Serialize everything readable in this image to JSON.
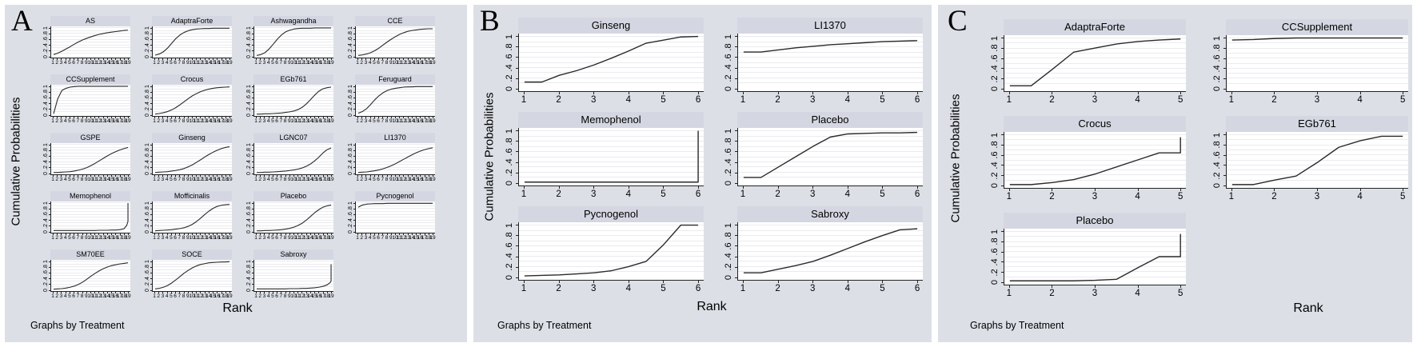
{
  "figure": {
    "background": "#ffffff",
    "panel_background": "#dce0e6",
    "title_bar_color": "#d4d7e1",
    "gridline_color": "#ebebef",
    "axis_color": "#222222",
    "curve_color": "#2a2a2a"
  },
  "chart_data": [
    {
      "panel_letter": "A",
      "type": "line",
      "ylabel": "Cumulative Probabilities",
      "xlabel": "Rank",
      "footer": "Graphs by Treatment",
      "grid": "horizontal gridlines on",
      "columns": 4,
      "x_range": [
        1,
        19
      ],
      "x_ticks": [
        1,
        2,
        3,
        4,
        5,
        6,
        7,
        8,
        9,
        10,
        11,
        12,
        13,
        14,
        15,
        16,
        17,
        18,
        19
      ],
      "x_default": [
        1,
        2,
        3,
        4,
        5,
        6,
        7,
        8,
        9,
        10,
        11,
        12,
        13,
        14,
        15,
        16,
        17,
        18,
        19
      ],
      "ylim": [
        0,
        1
      ],
      "y_ticks": [
        0,
        0.2,
        0.4,
        0.6,
        0.8,
        1
      ],
      "y_tick_labels": [
        "0",
        ".2",
        ".4",
        ".6",
        ".8",
        "1"
      ],
      "subplots": [
        {
          "title": "AS",
          "y": [
            0.05,
            0.1,
            0.17,
            0.25,
            0.33,
            0.42,
            0.5,
            0.57,
            0.63,
            0.68,
            0.73,
            0.77,
            0.8,
            0.83,
            0.85,
            0.87,
            0.89,
            0.91,
            0.92
          ]
        },
        {
          "title": "AdaptraForte",
          "y": [
            0.03,
            0.07,
            0.15,
            0.28,
            0.45,
            0.62,
            0.75,
            0.84,
            0.9,
            0.94,
            0.96,
            0.97,
            0.98,
            0.98,
            0.99,
            0.99,
            0.99,
            0.99,
            0.99
          ]
        },
        {
          "title": "Ashwagandha",
          "y": [
            0.02,
            0.05,
            0.12,
            0.25,
            0.42,
            0.6,
            0.75,
            0.86,
            0.92,
            0.96,
            0.98,
            0.99,
            0.99,
            0.99,
            1,
            1,
            1,
            1,
            1
          ]
        },
        {
          "title": "CCE",
          "y": [
            0.02,
            0.04,
            0.07,
            0.12,
            0.19,
            0.28,
            0.39,
            0.5,
            0.6,
            0.69,
            0.77,
            0.83,
            0.88,
            0.91,
            0.93,
            0.95,
            0.96,
            0.97,
            0.97
          ]
        },
        {
          "title": "CCSupplement",
          "y": [
            0.02,
            0.55,
            0.85,
            0.93,
            0.97,
            0.99,
            1,
            1,
            1,
            1,
            1,
            1,
            1,
            1,
            1,
            1,
            1,
            1,
            1
          ]
        },
        {
          "title": "Crocus",
          "y": [
            0.01,
            0.03,
            0.06,
            0.1,
            0.16,
            0.24,
            0.34,
            0.45,
            0.56,
            0.66,
            0.74,
            0.81,
            0.86,
            0.9,
            0.93,
            0.95,
            0.96,
            0.97,
            0.98
          ]
        },
        {
          "title": "EGb761",
          "y": [
            0.01,
            0.01,
            0.02,
            0.02,
            0.03,
            0.04,
            0.05,
            0.07,
            0.09,
            0.12,
            0.17,
            0.25,
            0.37,
            0.52,
            0.68,
            0.82,
            0.91,
            0.95,
            0.97
          ]
        },
        {
          "title": "Feruguard",
          "y": [
            0.04,
            0.1,
            0.2,
            0.35,
            0.52,
            0.66,
            0.77,
            0.85,
            0.9,
            0.93,
            0.95,
            0.97,
            0.98,
            0.98,
            0.99,
            0.99,
            0.99,
            0.99,
            0.99
          ]
        },
        {
          "title": "GSPE",
          "y": [
            0.01,
            0.01,
            0.02,
            0.03,
            0.04,
            0.06,
            0.09,
            0.13,
            0.18,
            0.25,
            0.33,
            0.42,
            0.51,
            0.6,
            0.68,
            0.75,
            0.81,
            0.86,
            0.9
          ]
        },
        {
          "title": "Ginseng",
          "y": [
            0.01,
            0.02,
            0.03,
            0.04,
            0.06,
            0.08,
            0.11,
            0.15,
            0.21,
            0.28,
            0.37,
            0.46,
            0.56,
            0.65,
            0.73,
            0.8,
            0.86,
            0.9,
            0.93
          ]
        },
        {
          "title": "LGNC07",
          "y": [
            0.01,
            0.01,
            0.02,
            0.02,
            0.03,
            0.04,
            0.05,
            0.06,
            0.08,
            0.1,
            0.13,
            0.17,
            0.23,
            0.31,
            0.42,
            0.55,
            0.7,
            0.82,
            0.88
          ]
        },
        {
          "title": "LI1370",
          "y": [
            0.01,
            0.02,
            0.03,
            0.05,
            0.07,
            0.1,
            0.14,
            0.19,
            0.25,
            0.32,
            0.4,
            0.48,
            0.56,
            0.64,
            0.71,
            0.77,
            0.82,
            0.86,
            0.89
          ]
        },
        {
          "title": "Memophenol",
          "x": [
            1,
            2,
            3,
            4,
            5,
            6,
            7,
            8,
            9,
            10,
            11,
            12,
            13,
            14,
            15,
            16,
            17,
            18,
            18.7,
            19,
            19
          ],
          "y": [
            0.02,
            0.02,
            0.02,
            0.02,
            0.02,
            0.02,
            0.02,
            0.02,
            0.02,
            0.02,
            0.02,
            0.03,
            0.03,
            0.03,
            0.04,
            0.04,
            0.05,
            0.08,
            0.2,
            0.35,
            1
          ]
        },
        {
          "title": "Mofficinalis",
          "y": [
            0.01,
            0.02,
            0.03,
            0.04,
            0.05,
            0.07,
            0.09,
            0.12,
            0.17,
            0.24,
            0.34,
            0.46,
            0.59,
            0.71,
            0.81,
            0.88,
            0.92,
            0.94,
            0.95
          ]
        },
        {
          "title": "Placebo",
          "y": [
            0.01,
            0.01,
            0.02,
            0.02,
            0.03,
            0.04,
            0.05,
            0.07,
            0.1,
            0.14,
            0.2,
            0.28,
            0.39,
            0.52,
            0.65,
            0.76,
            0.85,
            0.9,
            0.93
          ]
        },
        {
          "title": "Pycnogenol",
          "y": [
            0.85,
            0.93,
            0.96,
            0.97,
            0.98,
            0.98,
            0.98,
            0.99,
            0.99,
            0.99,
            0.99,
            0.99,
            0.99,
            0.99,
            0.99,
            0.99,
            0.99,
            0.99,
            0.99
          ]
        },
        {
          "title": "SM70EE",
          "y": [
            0.01,
            0.02,
            0.03,
            0.05,
            0.08,
            0.12,
            0.18,
            0.26,
            0.36,
            0.47,
            0.57,
            0.66,
            0.74,
            0.8,
            0.85,
            0.88,
            0.91,
            0.93,
            0.95
          ]
        },
        {
          "title": "SOCE",
          "y": [
            0.02,
            0.04,
            0.08,
            0.14,
            0.23,
            0.34,
            0.46,
            0.58,
            0.68,
            0.77,
            0.84,
            0.89,
            0.92,
            0.95,
            0.96,
            0.97,
            0.98,
            0.98,
            0.99
          ]
        },
        {
          "title": "Sabroxy",
          "x": [
            1,
            2,
            3,
            4,
            5,
            6,
            7,
            8,
            9,
            10,
            11,
            12,
            13,
            14,
            15,
            16,
            17,
            18,
            18.8,
            19,
            19
          ],
          "y": [
            0.02,
            0.02,
            0.02,
            0.02,
            0.02,
            0.02,
            0.02,
            0.02,
            0.03,
            0.03,
            0.03,
            0.04,
            0.04,
            0.05,
            0.06,
            0.08,
            0.11,
            0.16,
            0.25,
            0.3,
            0.9
          ]
        }
      ]
    },
    {
      "panel_letter": "B",
      "type": "line",
      "ylabel": "Cumulative Probabilities",
      "xlabel": "Rank",
      "footer": "Graphs by Treatment",
      "grid": "horizontal gridlines on",
      "columns": 2,
      "x_range": [
        1,
        6
      ],
      "x_ticks": [
        1,
        2,
        3,
        4,
        5,
        6
      ],
      "x_default": [
        1,
        1.5,
        2,
        2.5,
        3,
        3.5,
        4,
        4.5,
        5,
        5.5,
        6
      ],
      "ylim": [
        0,
        1
      ],
      "y_ticks": [
        0,
        0.2,
        0.4,
        0.6,
        0.8,
        1
      ],
      "y_tick_labels": [
        "0",
        ".2",
        ".4",
        ".6",
        ".8",
        "1"
      ],
      "subplots": [
        {
          "title": "Ginseng",
          "y": [
            0.12,
            0.12,
            0.25,
            0.34,
            0.45,
            0.58,
            0.72,
            0.87,
            0.93,
            0.99,
            1
          ]
        },
        {
          "title": "LI1370",
          "y": [
            0.7,
            0.7,
            0.74,
            0.78,
            0.81,
            0.84,
            0.86,
            0.88,
            0.9,
            0.91,
            0.92
          ]
        },
        {
          "title": "Memophenol",
          "x": [
            1,
            6,
            6
          ],
          "y": [
            0.01,
            0.01,
            1
          ]
        },
        {
          "title": "Placebo",
          "y": [
            0.1,
            0.1,
            0.3,
            0.5,
            0.7,
            0.88,
            0.94,
            0.95,
            0.96,
            0.96,
            0.97
          ]
        },
        {
          "title": "Pycnogenol",
          "y": [
            0.02,
            0.03,
            0.04,
            0.06,
            0.08,
            0.12,
            0.2,
            0.3,
            0.62,
            1,
            1
          ]
        },
        {
          "title": "Sabroxy",
          "y": [
            0.08,
            0.08,
            0.15,
            0.22,
            0.3,
            0.42,
            0.55,
            0.68,
            0.8,
            0.91,
            0.93
          ]
        }
      ]
    },
    {
      "panel_letter": "C",
      "type": "line",
      "ylabel": "Cumulative Probabilities",
      "xlabel": "Rank",
      "footer": "Graphs by Treatment",
      "grid": "horizontal gridlines on",
      "columns": 2,
      "x_range": [
        1,
        5
      ],
      "x_ticks": [
        1,
        2,
        3,
        4,
        5
      ],
      "x_default": [
        1,
        1.5,
        2,
        2.5,
        3,
        3.5,
        4,
        4.5,
        5
      ],
      "ylim": [
        0,
        1
      ],
      "y_ticks": [
        0,
        0.2,
        0.4,
        0.6,
        0.8,
        1
      ],
      "y_tick_labels": [
        "0",
        ".2",
        ".4",
        ".6",
        ".8",
        "1"
      ],
      "subplots": [
        {
          "title": "AdaptraForte",
          "y": [
            0.05,
            0.05,
            0.38,
            0.72,
            0.8,
            0.88,
            0.93,
            0.96,
            0.98
          ]
        },
        {
          "title": "CCSupplement",
          "y": [
            0.96,
            0.97,
            0.99,
            1,
            1,
            1,
            1,
            1,
            1
          ]
        },
        {
          "title": "Crocus",
          "x": [
            1,
            1.5,
            2,
            2.5,
            3,
            3.5,
            4,
            4.5,
            5,
            5
          ],
          "y": [
            0.01,
            0.01,
            0.05,
            0.11,
            0.22,
            0.36,
            0.5,
            0.64,
            0.64,
            0.95
          ]
        },
        {
          "title": "EGb761",
          "y": [
            0.01,
            0.01,
            0.1,
            0.18,
            0.45,
            0.75,
            0.88,
            0.97,
            0.97
          ]
        },
        {
          "title": "Placebo",
          "x": [
            1,
            1.5,
            2,
            2.5,
            3,
            3.5,
            4,
            4.5,
            5,
            5
          ],
          "y": [
            0.02,
            0.02,
            0.02,
            0.02,
            0.03,
            0.05,
            0.28,
            0.5,
            0.5,
            0.95
          ]
        }
      ]
    }
  ]
}
